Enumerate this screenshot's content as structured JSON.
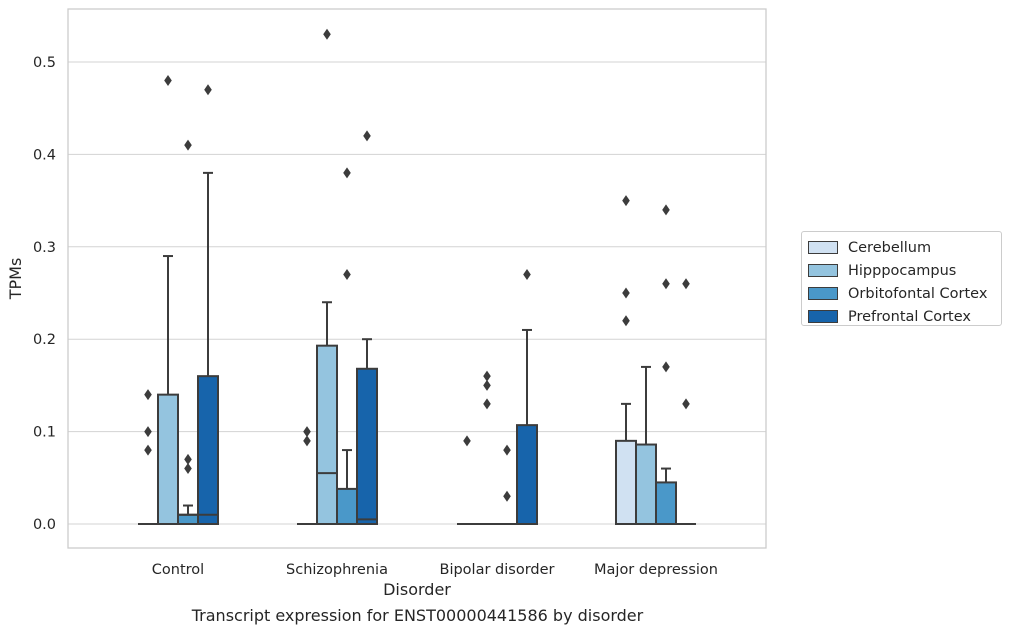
{
  "chart_data": {
    "type": "box",
    "xlabel": "Disorder",
    "ylabel": "TPMs",
    "ylim": [
      -0.026,
      0.556
    ],
    "yticks": [
      "0.0",
      "0.1",
      "0.2",
      "0.3",
      "0.4",
      "0.5"
    ],
    "ytick_values": [
      0.0,
      0.1,
      0.2,
      0.3,
      0.4,
      0.5
    ],
    "grid": true,
    "legend_position": "right",
    "categories": [
      "Control",
      "Schizophrenia",
      "Bipolar disorder",
      "Major depression"
    ],
    "series": [
      {
        "name": "Cerebellum",
        "color": "#d0e1f2",
        "boxes": [
          {
            "q1": 0,
            "median": 0,
            "q3": 0,
            "whisker_low": 0,
            "whisker_high": 0,
            "outliers": [
              0.14,
              0.1,
              0.08
            ]
          },
          {
            "q1": 0,
            "median": 0,
            "q3": 0,
            "whisker_low": 0,
            "whisker_high": 0,
            "outliers": [
              0.1,
              0.09
            ]
          },
          {
            "q1": 0,
            "median": 0,
            "q3": 0,
            "whisker_low": 0,
            "whisker_high": 0,
            "outliers": [
              0.09
            ]
          },
          {
            "q1": 0,
            "median": 0,
            "q3": 0.09,
            "whisker_low": 0,
            "whisker_high": 0.13,
            "outliers": [
              0.35,
              0.25,
              0.22
            ]
          }
        ]
      },
      {
        "name": "Hipppocampus",
        "color": "#94c4df",
        "boxes": [
          {
            "q1": 0,
            "median": 0,
            "q3": 0.14,
            "whisker_low": 0,
            "whisker_high": 0.29,
            "outliers": [
              0.48
            ]
          },
          {
            "q1": 0,
            "median": 0.055,
            "q3": 0.193,
            "whisker_low": 0,
            "whisker_high": 0.24,
            "outliers": [
              0.53
            ]
          },
          {
            "q1": 0,
            "median": 0,
            "q3": 0,
            "whisker_low": 0,
            "whisker_high": 0,
            "outliers": [
              0.16,
              0.15,
              0.13
            ]
          },
          {
            "q1": 0,
            "median": 0,
            "q3": 0.086,
            "whisker_low": 0,
            "whisker_high": 0.17,
            "outliers": []
          }
        ]
      },
      {
        "name": "Orbitofontal Cortex",
        "color": "#4a98c9",
        "boxes": [
          {
            "q1": 0,
            "median": 0.01,
            "q3": 0.01,
            "whisker_low": 0,
            "whisker_high": 0.02,
            "outliers": [
              0.41,
              0.07,
              0.06
            ]
          },
          {
            "q1": 0,
            "median": 0,
            "q3": 0.038,
            "whisker_low": 0,
            "whisker_high": 0.08,
            "outliers": [
              0.38,
              0.27
            ]
          },
          {
            "q1": 0,
            "median": 0,
            "q3": 0,
            "whisker_low": 0,
            "whisker_high": 0,
            "outliers": [
              0.08,
              0.03
            ]
          },
          {
            "q1": 0,
            "median": 0,
            "q3": 0.045,
            "whisker_low": 0,
            "whisker_high": 0.06,
            "outliers": [
              0.34,
              0.26,
              0.17
            ]
          }
        ]
      },
      {
        "name": "Prefrontal Cortex",
        "color": "#1764ab",
        "boxes": [
          {
            "q1": 0,
            "median": 0.01,
            "q3": 0.16,
            "whisker_low": 0,
            "whisker_high": 0.38,
            "outliers": [
              0.47
            ]
          },
          {
            "q1": 0,
            "median": 0.005,
            "q3": 0.168,
            "whisker_low": 0,
            "whisker_high": 0.2,
            "outliers": [
              0.42
            ]
          },
          {
            "q1": 0,
            "median": 0,
            "q3": 0.107,
            "whisker_low": 0,
            "whisker_high": 0.21,
            "outliers": [
              0.27
            ]
          },
          {
            "q1": 0,
            "median": 0,
            "q3": 0,
            "whisker_low": 0,
            "whisker_high": 0,
            "outliers": [
              0.26,
              0.13
            ]
          }
        ]
      }
    ]
  },
  "caption": "Transcript expression for ENST00000441586 by disorder"
}
